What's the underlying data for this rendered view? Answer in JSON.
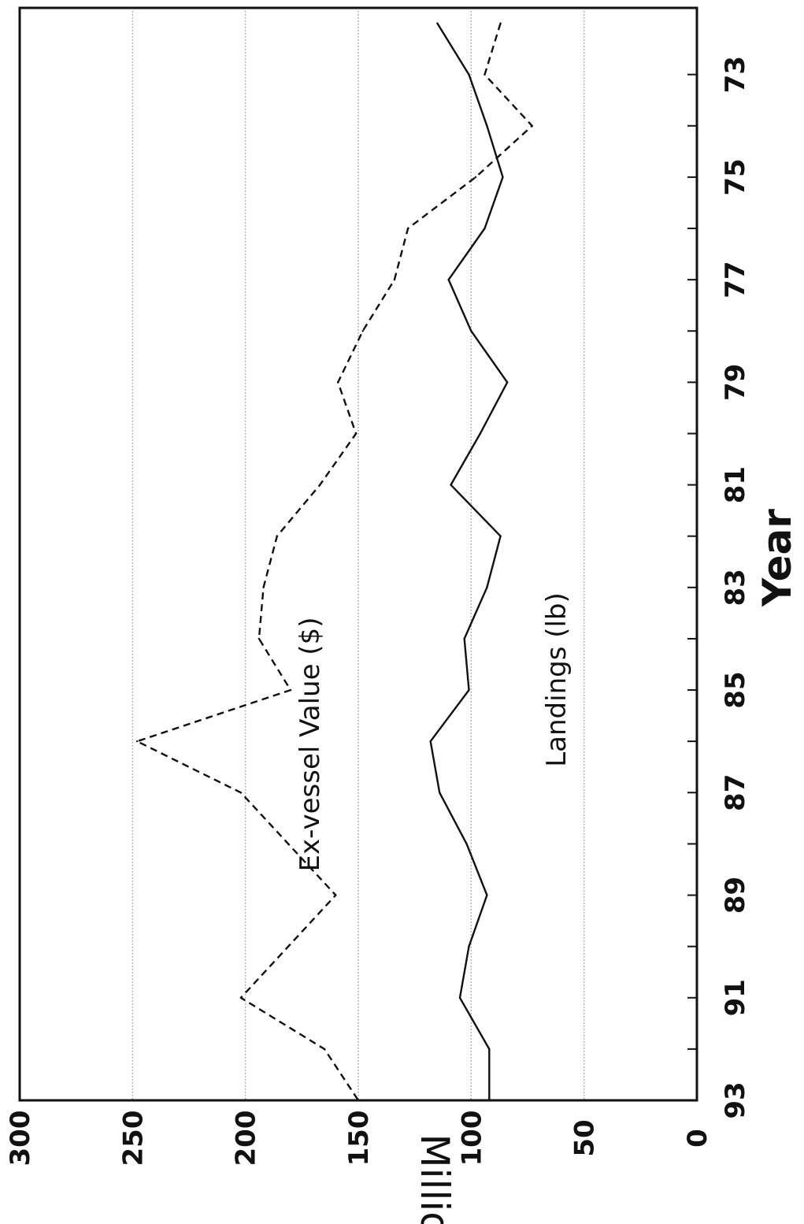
{
  "chart_data": {
    "type": "line",
    "xlabel": "Year",
    "ylabel": "Millions",
    "xlim": [
      71.7,
      93
    ],
    "ylim": [
      0,
      300
    ],
    "x_ticks": [
      "73",
      "75",
      "77",
      "79",
      "81",
      "83",
      "85",
      "87",
      "89",
      "91",
      "93"
    ],
    "x_tick_values": [
      73,
      75,
      77,
      79,
      81,
      83,
      85,
      87,
      89,
      91,
      93
    ],
    "y_ticks": [
      "0",
      "50",
      "100",
      "150",
      "200",
      "250",
      "300"
    ],
    "y_tick_values": [
      0,
      50,
      100,
      150,
      200,
      250,
      300
    ],
    "grid": true,
    "series": [
      {
        "name": "Ex-vessel Value ($)",
        "style": "dashed",
        "x": [
          72,
          73,
          74,
          75,
          76,
          77,
          78,
          79,
          80,
          81,
          82,
          83,
          84,
          85,
          86,
          87,
          88,
          89,
          90,
          91,
          92,
          93
        ],
        "values": [
          87,
          94,
          73,
          98,
          128,
          134,
          148,
          159,
          151,
          167,
          186,
          192,
          194,
          180,
          248,
          202,
          181,
          160,
          181,
          202,
          165,
          150
        ]
      },
      {
        "name": "Landings (lb)",
        "style": "solid",
        "x": [
          72,
          73,
          74,
          75,
          76,
          77,
          78,
          79,
          80,
          81,
          82,
          83,
          84,
          85,
          86,
          87,
          88,
          89,
          90,
          91,
          92,
          93
        ],
        "values": [
          115,
          101,
          93,
          86,
          94,
          110,
          100,
          84,
          96,
          109,
          87,
          93,
          103,
          101,
          118,
          114,
          102,
          93,
          101,
          105,
          92,
          92
        ]
      }
    ],
    "colors": {
      "line": "#111111",
      "grid": "#9a9a9a",
      "frame": "#111111"
    }
  }
}
